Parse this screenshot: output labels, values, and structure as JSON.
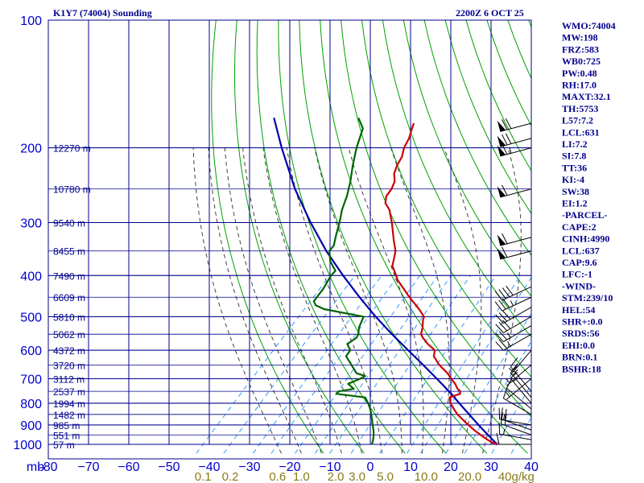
{
  "header": {
    "station": "K1Y7 (74004) Sounding",
    "time": "2200Z  6 OCT 25"
  },
  "colors": {
    "grid": "#00008b",
    "dry_adiabat": "#00a000",
    "moist_adiabat": "#404040",
    "mixing_ratio": "#3399ff",
    "temperature": "#cc0000",
    "dewpoint": "#006400",
    "parcel": "#0000aa",
    "wind_barb": "#000000",
    "mixing_label": "#8b7a1a"
  },
  "chart_data": {
    "type": "skew-t",
    "y_axis_unit": "mb",
    "x_axis_unit": "°C",
    "pressure_range": [
      100,
      1000
    ],
    "temperature_range": [
      -80,
      40
    ],
    "pressure_ticks": [
      100,
      200,
      300,
      400,
      500,
      600,
      700,
      800,
      900,
      1000
    ],
    "pressure_tick_labels": [
      "100",
      "200",
      "300",
      "400",
      "500",
      "600",
      "700",
      "800",
      "900",
      "1000"
    ],
    "x_axis_label": "mb",
    "temperature_ticks": [
      -80,
      -70,
      -60,
      -50,
      -40,
      -30,
      -20,
      -10,
      0,
      10,
      20,
      30,
      40
    ],
    "temperature_tick_labels": [
      "-80",
      "−70",
      "−60",
      "−50",
      "−40",
      "−30",
      "−20",
      "−10",
      "0",
      "10",
      "20",
      "30",
      "40"
    ],
    "height_labels": [
      {
        "p": 1000,
        "label": "57 m"
      },
      {
        "p": 950,
        "label": "551 m"
      },
      {
        "p": 900,
        "label": "985 m"
      },
      {
        "p": 850,
        "label": "1482 m"
      },
      {
        "p": 800,
        "label": "1994 m"
      },
      {
        "p": 750,
        "label": "2537 m"
      },
      {
        "p": 700,
        "label": "3112 m"
      },
      {
        "p": 650,
        "label": "3720 m"
      },
      {
        "p": 600,
        "label": "4372 m"
      },
      {
        "p": 550,
        "label": "5062 m"
      },
      {
        "p": 500,
        "label": "5810 m"
      },
      {
        "p": 450,
        "label": "6609 m"
      },
      {
        "p": 400,
        "label": "7490 m"
      },
      {
        "p": 350,
        "label": "8455 m"
      },
      {
        "p": 300,
        "label": "9540 m"
      },
      {
        "p": 250,
        "label": "10780 m"
      },
      {
        "p": 200,
        "label": "12270 m"
      }
    ],
    "mixing_ratio_labels": [
      {
        "w": 0.1,
        "label": "0.1"
      },
      {
        "w": 0.2,
        "label": "0.2"
      },
      {
        "w": 0.6,
        "label": "0.6"
      },
      {
        "w": 1.0,
        "label": "1.0"
      },
      {
        "w": 2.0,
        "label": "2.0"
      },
      {
        "w": 3.0,
        "label": "3.0"
      },
      {
        "w": 5.0,
        "label": "5.0"
      },
      {
        "w": 10.0,
        "label": "10.0"
      },
      {
        "w": 20.0,
        "label": "20.0"
      },
      {
        "w": 40.0,
        "label": "40g/kg"
      }
    ],
    "mixing_ratio_lines": [
      0.1,
      0.2,
      0.4,
      0.6,
      1.0,
      1.5,
      2.0,
      3.0,
      5.0,
      8.0,
      10.0,
      15.0,
      20.0,
      30.0,
      40.0
    ],
    "dry_adiabats_K": [
      260,
      270,
      280,
      290,
      300,
      310,
      320,
      330,
      340,
      350,
      360,
      370,
      380,
      390,
      400,
      410,
      420,
      430,
      440,
      450,
      460,
      470,
      480,
      490,
      500,
      510,
      520
    ],
    "moist_adiabats_C": [
      -20,
      -15,
      -10,
      -5,
      0,
      5,
      10,
      15,
      20,
      25,
      30
    ],
    "temperature": {
      "p": [
        1000,
        990,
        975,
        950,
        925,
        900,
        875,
        850,
        825,
        800,
        775,
        760,
        750,
        740,
        720,
        700,
        680,
        650,
        620,
        600,
        580,
        560,
        550,
        530,
        510,
        500,
        480,
        460,
        450,
        430,
        410,
        400,
        380,
        360,
        350,
        330,
        310,
        300,
        290,
        280,
        270,
        260,
        250,
        240,
        230,
        220,
        210,
        200,
        190,
        180,
        175
      ],
      "t": [
        31.5,
        29.8,
        28.0,
        25.2,
        22.4,
        19.8,
        17.2,
        14.6,
        12.4,
        10.2,
        8.6,
        10.4,
        9.8,
        8.6,
        6.8,
        4.6,
        2.4,
        -1.6,
        -5.0,
        -6.2,
        -9.4,
        -12.2,
        -13.4,
        -14.6,
        -16.2,
        -16.8,
        -19.8,
        -23.2,
        -25.0,
        -28.4,
        -32.0,
        -33.4,
        -36.6,
        -38.4,
        -39.4,
        -42.4,
        -45.4,
        -47.0,
        -48.8,
        -50.6,
        -53.2,
        -54.6,
        -55.0,
        -56.0,
        -58.0,
        -59.2,
        -60.0,
        -61.6,
        -62.6,
        -64.2,
        -65.0
      ]
    },
    "dewpoint": {
      "p": [
        1000,
        975,
        950,
        925,
        900,
        875,
        850,
        825,
        800,
        775,
        760,
        750,
        740,
        720,
        700,
        690,
        680,
        650,
        620,
        600,
        580,
        560,
        550,
        530,
        500,
        480,
        470,
        460,
        450,
        430,
        410,
        400,
        390,
        370,
        350,
        340,
        320,
        300,
        280,
        260,
        240,
        220,
        200,
        180,
        170
      ],
      "t": [
        0.4,
        -0.4,
        -1.4,
        -2.6,
        -4.0,
        -5.4,
        -6.8,
        -8.4,
        -10.2,
        -12.4,
        -20.4,
        -20.4,
        -17.2,
        -19.8,
        -18.0,
        -17.4,
        -20.2,
        -23.4,
        -26.8,
        -27.2,
        -29.4,
        -28.6,
        -29.0,
        -30.4,
        -31.8,
        -43.4,
        -46.4,
        -47.8,
        -48.0,
        -48.4,
        -49.2,
        -49.6,
        -49.6,
        -53.2,
        -55.8,
        -56.0,
        -58.0,
        -60.0,
        -62.4,
        -64.4,
        -67.0,
        -70.2,
        -73.4,
        -76.4,
        -80.0
      ]
    },
    "parcel": {
      "p": [
        1000,
        950,
        900,
        850,
        800,
        760,
        700,
        650,
        600,
        550,
        500,
        450,
        400,
        350,
        300,
        250,
        200,
        170
      ],
      "t": [
        31.5,
        27.0,
        22.3,
        17.5,
        12.4,
        8.2,
        1.0,
        -5.6,
        -12.8,
        -20.6,
        -28.8,
        -37.4,
        -46.6,
        -56.6,
        -67.2,
        -79.0,
        -92.0,
        -101.0
      ]
    },
    "winds": [
      {
        "p": 1000,
        "dir": 270,
        "spd": 10
      },
      {
        "p": 975,
        "dir": 280,
        "spd": 15
      },
      {
        "p": 950,
        "dir": 290,
        "spd": 20
      },
      {
        "p": 925,
        "dir": 290,
        "spd": 20
      },
      {
        "p": 900,
        "dir": 280,
        "spd": 15
      },
      {
        "p": 850,
        "dir": 300,
        "spd": 10
      },
      {
        "p": 825,
        "dir": 310,
        "spd": 10
      },
      {
        "p": 800,
        "dir": 320,
        "spd": 15
      },
      {
        "p": 775,
        "dir": 320,
        "spd": 15
      },
      {
        "p": 750,
        "dir": 320,
        "spd": 15
      },
      {
        "p": 700,
        "dir": 230,
        "spd": 5
      },
      {
        "p": 650,
        "dir": 230,
        "spd": 5
      },
      {
        "p": 600,
        "dir": 220,
        "spd": 5
      },
      {
        "p": 550,
        "dir": 240,
        "spd": 25
      },
      {
        "p": 525,
        "dir": 240,
        "spd": 25
      },
      {
        "p": 500,
        "dir": 240,
        "spd": 30
      },
      {
        "p": 475,
        "dir": 240,
        "spd": 30
      },
      {
        "p": 450,
        "dir": 245,
        "spd": 35
      },
      {
        "p": 425,
        "dir": 245,
        "spd": 40
      },
      {
        "p": 350,
        "dir": 255,
        "spd": 60
      },
      {
        "p": 325,
        "dir": 255,
        "spd": 60
      },
      {
        "p": 250,
        "dir": 255,
        "spd": 60
      },
      {
        "p": 200,
        "dir": 255,
        "spd": 65
      },
      {
        "p": 190,
        "dir": 255,
        "spd": 70
      },
      {
        "p": 175,
        "dir": 255,
        "spd": 70
      }
    ]
  },
  "indices": [
    "WMO:74004",
    "MW:198",
    "FRZ:583",
    "WB0:725",
    "PW:0.48",
    "RH:17.0",
    "MAXT:32.1",
    "TH:5753",
    "L57:7.2",
    "LCL:631",
    "LI:7.2",
    "SI:7.8",
    "TT:36",
    "KI:-4",
    "SW:38",
    "EI:1.2",
    "-PARCEL-",
    "CAPE:2",
    "CINH:4990",
    "LCL:637",
    "CAP:9.6",
    "LFC:-1",
    "-WIND-",
    "STM:239/10",
    "HEL:54",
    "SHR+:0.0",
    "SRDS:56",
    "EHI:0.0",
    "BRN:0.1",
    "BSHR:18"
  ]
}
